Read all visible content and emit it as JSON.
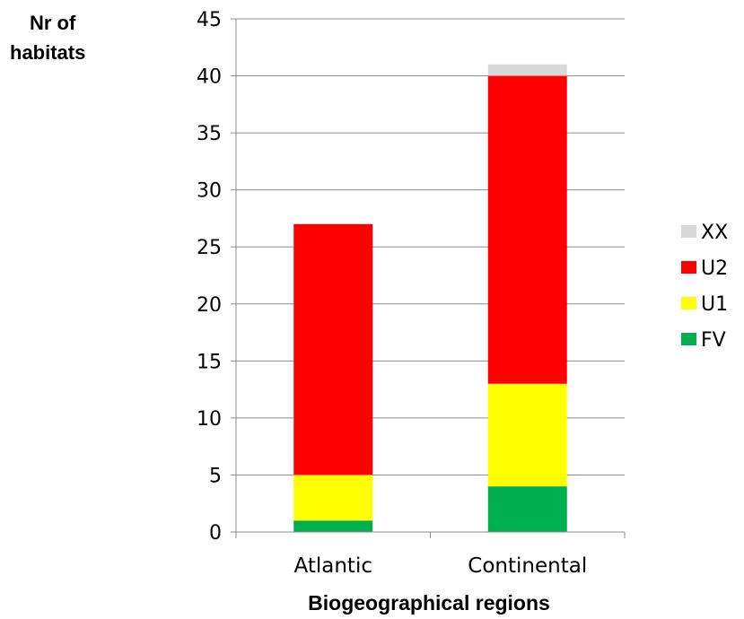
{
  "chart_data": {
    "type": "bar",
    "stacked": true,
    "ylabel_lines": [
      "Nr of",
      "habitats"
    ],
    "xlabel": "Biogeographical regions",
    "categories": [
      "Atlantic",
      "Continental"
    ],
    "ylim": [
      0,
      45
    ],
    "yticks": [
      "0",
      "5",
      "10",
      "15",
      "20",
      "25",
      "30",
      "35",
      "40",
      "45"
    ],
    "grid": true,
    "legend_position": "right",
    "series": [
      {
        "name": "FV",
        "color": "#00b050",
        "values": [
          1,
          4
        ]
      },
      {
        "name": "U1",
        "color": "#ffff00",
        "values": [
          4,
          9
        ]
      },
      {
        "name": "U2",
        "color": "#ff0000",
        "values": [
          22,
          27
        ]
      },
      {
        "name": "XX",
        "color": "#d9d9d9",
        "values": [
          0,
          1
        ]
      }
    ],
    "legend_order": [
      "XX",
      "U2",
      "U1",
      "FV"
    ]
  }
}
